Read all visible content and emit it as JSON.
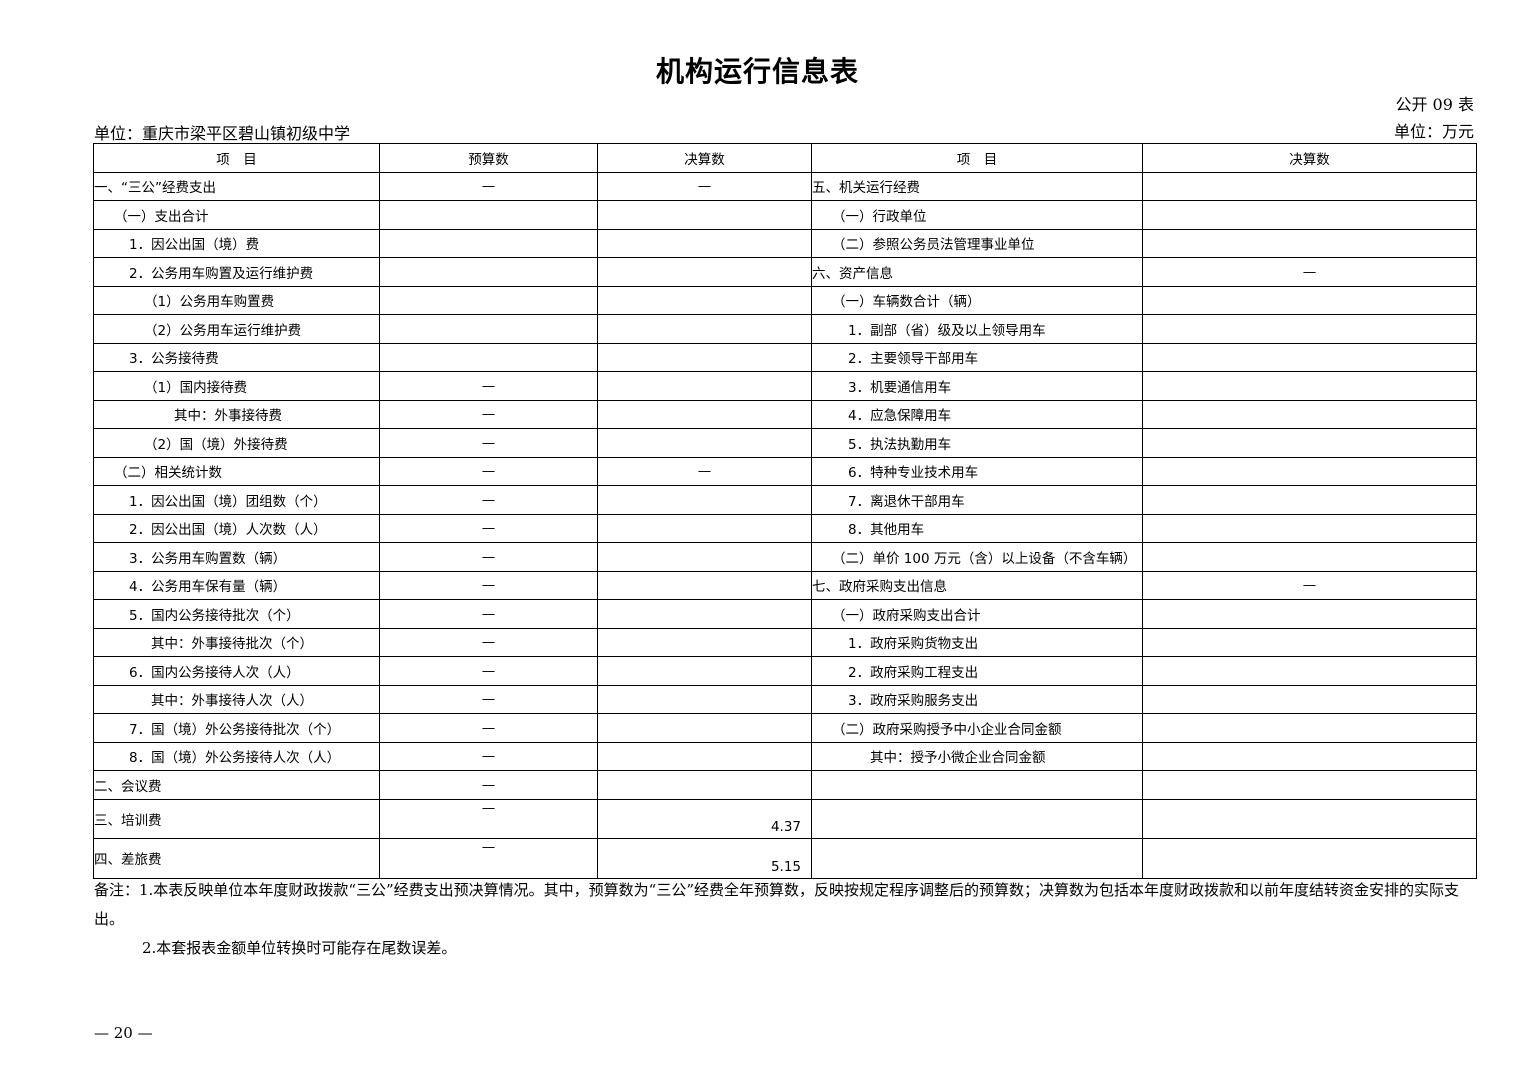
{
  "title": "机构运行信息表",
  "table_code": "公开 09 表",
  "unit_org": "单位：重庆市梁平区碧山镇初级中学",
  "unit_money": "单位：万元",
  "headers": [
    "项　目",
    "预算数",
    "决算数",
    "项　目",
    "决算数"
  ],
  "left_rows": [
    {
      "label": "一、“三公”经费支出",
      "level": 0,
      "budget": "—",
      "final": "—"
    },
    {
      "label": "（一）支出合计",
      "level": 1,
      "budget": "",
      "final": ""
    },
    {
      "label": "1．因公出国（境）费",
      "level": 2,
      "budget": "",
      "final": ""
    },
    {
      "label": "2．公务用车购置及运行维护费",
      "level": 2,
      "budget": "",
      "final": ""
    },
    {
      "label": "（1）公务用车购置费",
      "level": 3,
      "budget": "",
      "final": ""
    },
    {
      "label": "（2）公务用车运行维护费",
      "level": 3,
      "budget": "",
      "final": ""
    },
    {
      "label": "3．公务接待费",
      "level": 2,
      "budget": "",
      "final": ""
    },
    {
      "label": "（1）国内接待费",
      "level": 3,
      "budget": "—",
      "final": ""
    },
    {
      "label": "其中：外事接待费",
      "level": 5,
      "budget": "—",
      "final": ""
    },
    {
      "label": "（2）国（境）外接待费",
      "level": 3,
      "budget": "—",
      "final": ""
    },
    {
      "label": "（二）相关统计数",
      "level": 1,
      "budget": "—",
      "final": "—"
    },
    {
      "label": "1．因公出国（境）团组数（个）",
      "level": 2,
      "budget": "—",
      "final": ""
    },
    {
      "label": "2．因公出国（境）人次数（人）",
      "level": 2,
      "budget": "—",
      "final": ""
    },
    {
      "label": "3．公务用车购置数（辆）",
      "level": 2,
      "budget": "—",
      "final": ""
    },
    {
      "label": "4．公务用车保有量（辆）",
      "level": 2,
      "budget": "—",
      "final": ""
    },
    {
      "label": "5．国内公务接待批次（个）",
      "level": 2,
      "budget": "—",
      "final": ""
    },
    {
      "label": "其中：外事接待批次（个）",
      "level": 4,
      "budget": "—",
      "final": ""
    },
    {
      "label": "6．国内公务接待人次（人）",
      "level": 2,
      "budget": "—",
      "final": ""
    },
    {
      "label": "其中：外事接待人次（人）",
      "level": 4,
      "budget": "—",
      "final": ""
    },
    {
      "label": "7．国（境）外公务接待批次（个）",
      "level": 2,
      "budget": "—",
      "final": ""
    },
    {
      "label": "8．国（境）外公务接待人次（人）",
      "level": 2,
      "budget": "—",
      "final": ""
    },
    {
      "label": "二、会议费",
      "level": 0,
      "budget": "—",
      "final": ""
    },
    {
      "label": "三、培训费",
      "level": 0,
      "budget": "—",
      "final": "4.37"
    },
    {
      "label": "四、差旅费",
      "level": 0,
      "budget": "—",
      "final": "5.15"
    }
  ],
  "right_rows": [
    {
      "label": "五、机关运行经费",
      "level": 0,
      "final": ""
    },
    {
      "label": "（一）行政单位",
      "level": 1,
      "final": ""
    },
    {
      "label": "（二）参照公务员法管理事业单位",
      "level": 1,
      "final": ""
    },
    {
      "label": "六、资产信息",
      "level": 0,
      "final": "—"
    },
    {
      "label": "（一）车辆数合计（辆）",
      "level": 1,
      "final": ""
    },
    {
      "label": "1．副部（省）级及以上领导用车",
      "level": 2,
      "final": ""
    },
    {
      "label": "2．主要领导干部用车",
      "level": 2,
      "final": ""
    },
    {
      "label": "3．机要通信用车",
      "level": 2,
      "final": ""
    },
    {
      "label": "4．应急保障用车",
      "level": 2,
      "final": ""
    },
    {
      "label": "5．执法执勤用车",
      "level": 2,
      "final": ""
    },
    {
      "label": "6．特种专业技术用车",
      "level": 2,
      "final": ""
    },
    {
      "label": "7．离退休干部用车",
      "level": 2,
      "final": ""
    },
    {
      "label": "8．其他用车",
      "level": 2,
      "final": ""
    },
    {
      "label": "（二）单价 100 万元（含）以上设备（不含车辆）",
      "level": 1,
      "final": ""
    },
    {
      "label": "七、政府采购支出信息",
      "level": 0,
      "final": "—"
    },
    {
      "label": "（一）政府采购支出合计",
      "level": 1,
      "final": ""
    },
    {
      "label": "1．政府采购货物支出",
      "level": 2,
      "final": ""
    },
    {
      "label": "2．政府采购工程支出",
      "level": 2,
      "final": ""
    },
    {
      "label": "3．政府采购服务支出",
      "level": 2,
      "final": ""
    },
    {
      "label": "（二）政府采购授予中小企业合同金额",
      "level": 1,
      "final": ""
    },
    {
      "label": "其中：授予小微企业合同金额",
      "level": 3,
      "final": ""
    }
  ],
  "notes": [
    "备注：1.本表反映单位本年度财政拨款“三公”经费支出预决算情况。其中，预算数为“三公”经费全年预算数，反映按规定程序调整后的预算数；决算数为包括本年度财政拨款和以前年度结转资金安排的实际支出。",
    "2.本套报表金额单位转换时可能存在尾数误差。"
  ],
  "page_number": "— 20 —"
}
